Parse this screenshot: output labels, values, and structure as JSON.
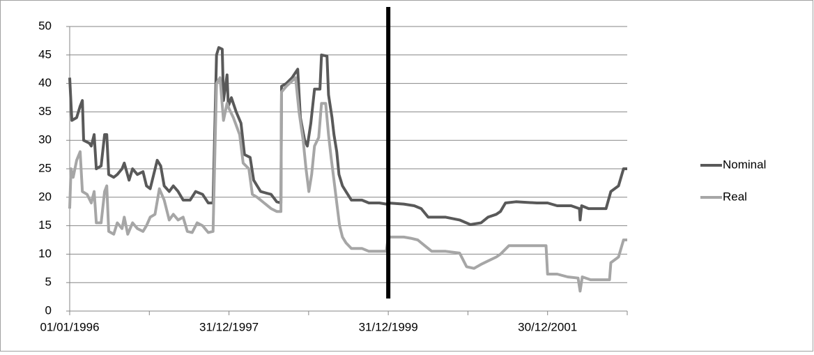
{
  "chart_data": {
    "type": "line",
    "xlim": [
      "01/01/1996",
      "30/12/2002"
    ],
    "xticks": [
      "01/01/1996",
      {
        "value": "31/12/1996",
        "label": null
      },
      "31/12/1997",
      {
        "value": "31/12/1998",
        "label": null
      },
      "31/12/1999",
      {
        "value": "30/12/2000",
        "label": null
      },
      "30/12/2001",
      {
        "value": "30/12/2002",
        "label": null
      }
    ],
    "ylim": [
      0,
      50
    ],
    "yticks": [
      0,
      5,
      10,
      15,
      20,
      25,
      30,
      35,
      40,
      45,
      50
    ],
    "grid": true,
    "legend": "right",
    "vertical_line": {
      "x": "31/12/1999",
      "color": "#000000"
    },
    "series": [
      {
        "name": "Nominal",
        "color": "#595959",
        "x": [
          "01/01/1996",
          "11/01/1996",
          "02/02/1996",
          "18/02/1996",
          "28/02/1996",
          "05/03/1996",
          "31/03/1996",
          "09/04/1996",
          "22/04/1996",
          "02/05/1996",
          "24/05/1996",
          "09/06/1996",
          "19/06/1996",
          "28/06/1996",
          "21/07/1996",
          "06/08/1996",
          "28/08/1996",
          "07/09/1996",
          "29/09/1996",
          "15/10/1996",
          "06/11/1996",
          "02/12/1996",
          "18/12/1996",
          "04/01/1997",
          "05/02/1997",
          "21/02/1997",
          "09/03/1997",
          "01/04/1997",
          "20/04/1997",
          "12/05/1997",
          "04/06/1997",
          "06/07/1997",
          "31/07/1997",
          "01/09/1997",
          "27/09/1997",
          "19/10/1997",
          "04/11/1997",
          "14/11/1997",
          "30/11/1997",
          "06/12/1997",
          "22/12/1997",
          "28/12/1997",
          "11/01/1998",
          "02/02/1998",
          "24/02/1998",
          "12/03/1998",
          "07/04/1998",
          "23/04/1998",
          "09/05/1998",
          "25/05/1998",
          "12/07/1998",
          "07/08/1998",
          "26/08/1998",
          "29/08/1998",
          "20/09/1998",
          "16/10/1998",
          "11/11/1998",
          "23/11/1998",
          "13/12/1998",
          "25/12/1998",
          "10/01/1999",
          "27/01/1999",
          "21/02/1999",
          "28/02/1999",
          "25/03/1999",
          "01/04/1999",
          "17/04/1999",
          "26/04/1999",
          "09/05/1999",
          "19/05/1999",
          "04/06/1999",
          "20/06/1999",
          "15/07/1999",
          "01/09/1999",
          "03/10/1999",
          "20/11/1999",
          "22/12/1999",
          "31/12/1999",
          "11/03/2000",
          "28/04/2000",
          "30/05/2000",
          "01/07/2000",
          "19/09/2000",
          "22/11/2000",
          "10/01/2001",
          "28/02/2001",
          "01/04/2001",
          "09/05/2001",
          "28/05/2001",
          "20/06/2001",
          "07/08/2001",
          "11/11/2001",
          "30/12/2001",
          "12/02/2002",
          "17/04/2002",
          "25/05/2002",
          "28/05/2002",
          "04/06/2002",
          "06/07/2002",
          "24/09/2002",
          "16/10/2002",
          "20/11/2002",
          "13/12/2002",
          "30/12/2002"
        ],
        "values": [
          41,
          33.5,
          34,
          36,
          37,
          30,
          29.5,
          29,
          31,
          25,
          25.5,
          31,
          31,
          24,
          23.5,
          24,
          25,
          26,
          23,
          25,
          24,
          24.5,
          22,
          21.5,
          26.5,
          25.5,
          22,
          21,
          22,
          21,
          19.5,
          19.5,
          21,
          20.5,
          19,
          19,
          45,
          46.3,
          46,
          37,
          41.5,
          36,
          37.5,
          35,
          33,
          27.5,
          27,
          23,
          22,
          21,
          20.5,
          19.2,
          19,
          39.5,
          40,
          41,
          42.5,
          34,
          30,
          29,
          33,
          39,
          39,
          45,
          44.8,
          38,
          34,
          31,
          28,
          24,
          22,
          21,
          19.5,
          19.5,
          19,
          19,
          18.8,
          19,
          18.8,
          18.5,
          18,
          16.5,
          16.5,
          16,
          15.2,
          15.5,
          16.5,
          17,
          17.5,
          19,
          19.2,
          19,
          19,
          18.5,
          18.5,
          18,
          16,
          18.5,
          18,
          18,
          21,
          22,
          25,
          25
        ]
      },
      {
        "name": "Real",
        "color": "#a6a6a6",
        "x": [
          "01/01/1996",
          "07/01/1996",
          "17/01/1996",
          "02/02/1996",
          "18/02/1996",
          "28/02/1996",
          "21/03/1996",
          "09/04/1996",
          "22/04/1996",
          "02/05/1996",
          "24/05/1996",
          "09/06/1996",
          "19/06/1996",
          "28/06/1996",
          "21/07/1996",
          "06/08/1996",
          "28/08/1996",
          "07/09/1996",
          "23/09/1996",
          "15/10/1996",
          "06/11/1996",
          "02/12/1996",
          "18/12/1996",
          "04/01/1997",
          "26/01/1997",
          "15/02/1997",
          "09/03/1997",
          "01/04/1997",
          "20/04/1997",
          "12/05/1997",
          "04/06/1997",
          "23/06/1997",
          "15/07/1997",
          "07/08/1997",
          "01/09/1997",
          "27/09/1997",
          "19/10/1997",
          "04/11/1997",
          "20/11/1997",
          "06/12/1997",
          "22/12/1997",
          "01/01/1998",
          "20/01/1998",
          "18/02/1998",
          "06/03/1998",
          "01/04/1998",
          "17/04/1998",
          "09/05/1998",
          "10/06/1998",
          "12/07/1998",
          "07/08/1998",
          "26/08/1998",
          "29/08/1998",
          "20/09/1998",
          "01/11/1998",
          "17/11/1998",
          "06/12/1998",
          "19/12/1998",
          "01/01/1999",
          "14/01/1999",
          "27/01/1999",
          "15/02/1999",
          "28/02/1999",
          "19/03/1999",
          "01/04/1999",
          "13/04/1999",
          "26/04/1999",
          "09/05/1999",
          "22/05/1999",
          "04/06/1999",
          "20/06/1999",
          "15/07/1999",
          "01/09/1999",
          "03/10/1999",
          "20/11/1999",
          "22/12/1999",
          "31/12/1999",
          "11/03/2000",
          "12/04/2000",
          "14/05/2000",
          "15/06/2000",
          "17/07/2000",
          "19/09/2000",
          "22/11/2000",
          "24/12/2000",
          "27/01/2001",
          "28/02/2001",
          "01/04/2001",
          "09/05/2001",
          "28/05/2001",
          "06/07/2001",
          "07/08/2001",
          "23/12/2001",
          "30/12/2001",
          "12/02/2002",
          "01/04/2002",
          "19/05/2002",
          "28/05/2002",
          "07/06/2002",
          "15/07/2002",
          "10/10/2002",
          "16/10/2002",
          "20/11/2002",
          "13/12/2002",
          "30/12/2002"
        ],
        "values": [
          18,
          25,
          23.5,
          26.5,
          28,
          21,
          20.5,
          19,
          21,
          15.5,
          15.5,
          21,
          22,
          14,
          13.5,
          15.5,
          14.5,
          16.5,
          13.5,
          15.5,
          14.5,
          14,
          15,
          16.5,
          17,
          21.5,
          19.5,
          16,
          17,
          16,
          16.5,
          14,
          13.8,
          15.5,
          15,
          13.8,
          14,
          40,
          41,
          33.5,
          36.5,
          35.5,
          34,
          31,
          26,
          25,
          20.5,
          20,
          19,
          18,
          17.5,
          17.5,
          38.5,
          39.5,
          41,
          35,
          30,
          25,
          21,
          24,
          29,
          30.5,
          36.5,
          36.5,
          31,
          27,
          23,
          19,
          15,
          13,
          12,
          11,
          11,
          10.5,
          10.5,
          10.5,
          13,
          13,
          12.8,
          12.5,
          11.5,
          10.5,
          10.5,
          10.2,
          7.8,
          7.5,
          8.2,
          8.8,
          9.5,
          10,
          11.5,
          11.5,
          11.5,
          6.5,
          6.5,
          6,
          5.8,
          3.5,
          6,
          5.5,
          5.5,
          8.5,
          9.5,
          12.5,
          12.5
        ]
      }
    ]
  }
}
